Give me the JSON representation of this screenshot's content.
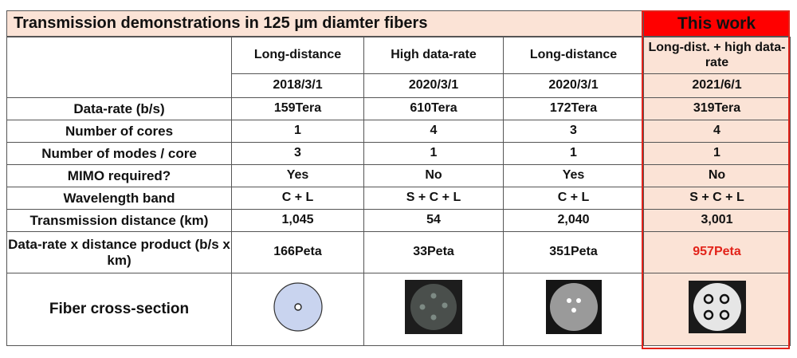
{
  "title": "Transmission demonstrations in 125 µm diamter fibers",
  "this_work_label": "This work",
  "columns": [
    {
      "header": "Long-distance",
      "date": "2018/3/1"
    },
    {
      "header": "High data-rate",
      "date": "2020/3/1"
    },
    {
      "header": "Long-distance",
      "date": "2020/3/1"
    },
    {
      "header": "Long-dist. + high data-rate",
      "date": "2021/6/1"
    }
  ],
  "rows": [
    {
      "label": "Data-rate (b/s)",
      "values": [
        "159Tera",
        "610Tera",
        "172Tera",
        "319Tera"
      ]
    },
    {
      "label": "Number of cores",
      "values": [
        "1",
        "4",
        "3",
        "4"
      ]
    },
    {
      "label": "Number of modes / core",
      "values": [
        "3",
        "1",
        "1",
        "1"
      ]
    },
    {
      "label": "MIMO required?",
      "values": [
        "Yes",
        "No",
        "Yes",
        "No"
      ]
    },
    {
      "label": "Wavelength band",
      "values": [
        "C + L",
        "S + C + L",
        "C + L",
        "S + C + L"
      ]
    },
    {
      "label": "Transmission distance (km)",
      "values": [
        "1,045",
        "54",
        "2,040",
        "3,001"
      ]
    },
    {
      "label": "Data-rate x distance product (b/s x km)",
      "values": [
        "166Peta",
        "33Peta",
        "351Peta",
        "957Peta"
      ]
    }
  ],
  "cross_section_label": "Fiber cross-section",
  "colors": {
    "title_band": "#fbe3d6",
    "this_work_band": "#ff0000",
    "highlight_text": "#e2231a",
    "single_core_fiber": "#c9d4ef"
  },
  "fiber_icons": [
    "single-core-fiber-icon",
    "four-core-fiber-dark-icon",
    "three-core-fiber-icon",
    "four-core-fiber-light-icon"
  ]
}
